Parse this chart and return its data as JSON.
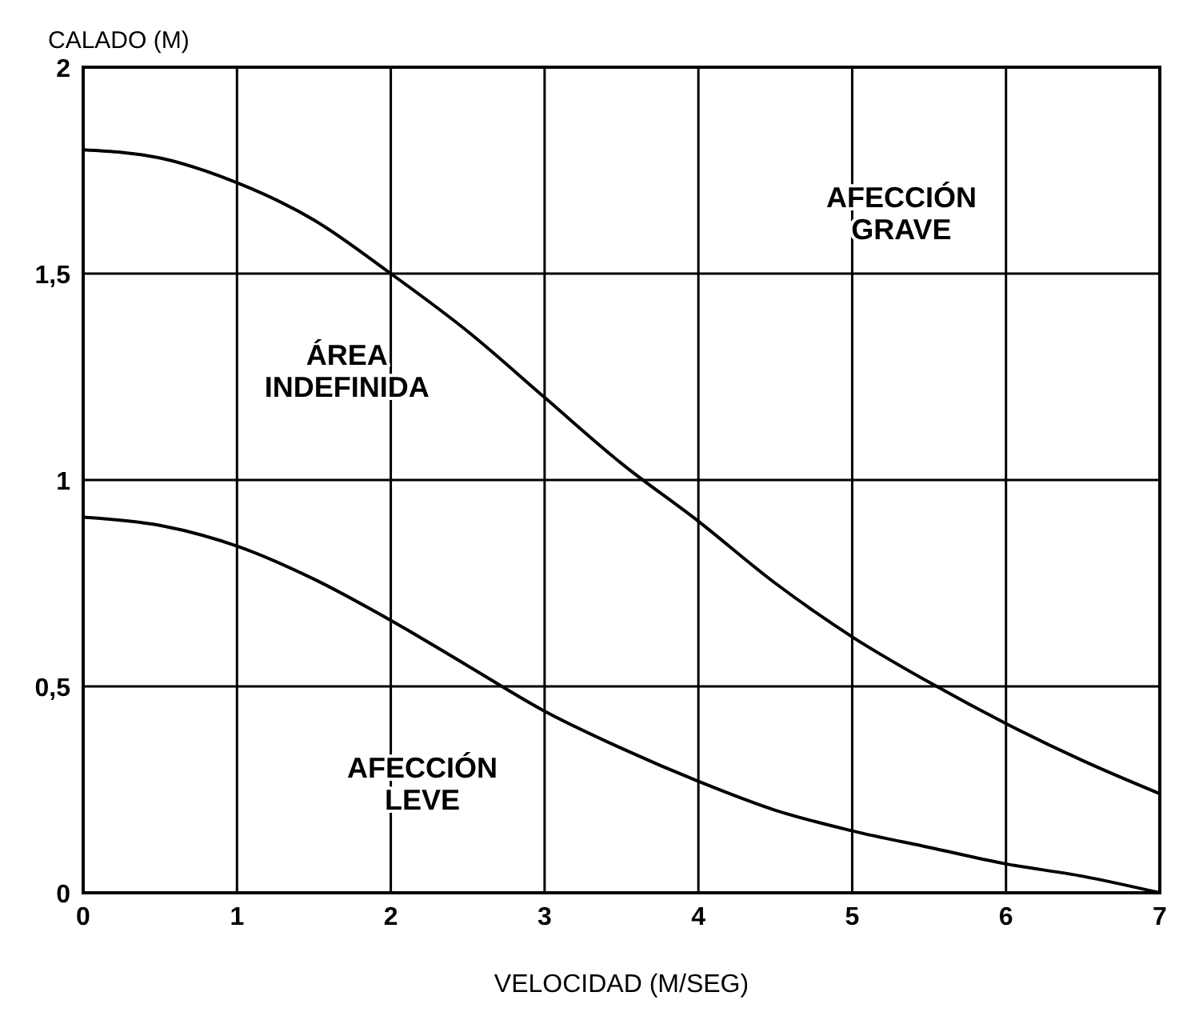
{
  "chart_data": {
    "type": "line",
    "xlabel": "VELOCIDAD (M/SEG)",
    "ylabel": "CALADO (M)",
    "xlim": [
      0,
      7
    ],
    "ylim": [
      0,
      2
    ],
    "xticks": [
      0,
      1,
      2,
      3,
      4,
      5,
      6,
      7
    ],
    "yticks": [
      0,
      {
        "value": 0.5,
        "label": "0,5"
      },
      1,
      {
        "value": 1.5,
        "label": "1,5"
      },
      2
    ],
    "grid": true,
    "marker": "none",
    "line_style": "solid",
    "series": [
      {
        "color": "#000000",
        "x": [
          0,
          0.5,
          1,
          1.5,
          2,
          2.5,
          3,
          3.5,
          4,
          4.5,
          5,
          5.5,
          6,
          6.5,
          7
        ],
        "values": [
          1.8,
          1.78,
          1.72,
          1.63,
          1.5,
          1.36,
          1.2,
          1.04,
          0.9,
          0.75,
          0.62,
          0.51,
          0.41,
          0.32,
          0.24
        ]
      },
      {
        "color": "#000000",
        "x": [
          0,
          0.5,
          1,
          1.5,
          2,
          2.5,
          3,
          3.5,
          4,
          4.5,
          5,
          5.5,
          6,
          6.5,
          7
        ],
        "values": [
          0.91,
          0.89,
          0.84,
          0.76,
          0.66,
          0.55,
          0.44,
          0.35,
          0.27,
          0.2,
          0.15,
          0.11,
          0.07,
          0.04,
          0
        ]
      }
    ],
    "annotations": [
      "AFECCIÓN GRAVE",
      "ÁREA INDEFINIDA",
      "AFECCIÓN LEVE"
    ]
  }
}
